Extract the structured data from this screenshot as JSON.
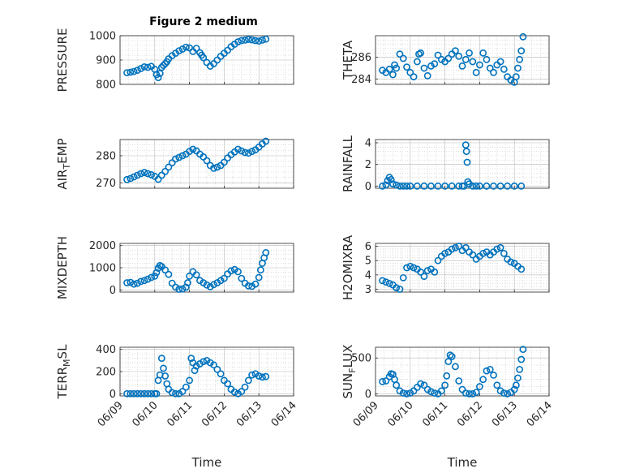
{
  "figure": {
    "title": "Figure 2 medium",
    "marker_color": "#0072bd"
  },
  "chart_data": [
    {
      "type": "scatter",
      "ylabel": "PRESSURE",
      "xlabel": "",
      "xlim": [
        "06/09",
        "06/14"
      ],
      "ylim": [
        800,
        1000
      ],
      "yticks": [
        800,
        900,
        1000
      ],
      "grid": true,
      "x": [
        0.2,
        0.3,
        0.4,
        0.5,
        0.6,
        0.7,
        0.8,
        0.9,
        1.0,
        1.05,
        1.1,
        1.15,
        1.2,
        1.25,
        1.3,
        1.35,
        1.4,
        1.5,
        1.6,
        1.7,
        1.8,
        1.9,
        2.0,
        2.1,
        2.2,
        2.3,
        2.35,
        2.4,
        2.5,
        2.6,
        2.7,
        2.8,
        2.9,
        3.0,
        3.1,
        3.2,
        3.3,
        3.4,
        3.5,
        3.6,
        3.7,
        3.8,
        3.9,
        4.0,
        4.1,
        4.2
      ],
      "y": [
        848,
        850,
        853,
        858,
        865,
        872,
        870,
        874,
        862,
        840,
        828,
        845,
        870,
        878,
        885,
        893,
        905,
        918,
        928,
        938,
        945,
        953,
        950,
        935,
        948,
        930,
        920,
        910,
        890,
        875,
        885,
        900,
        915,
        928,
        940,
        955,
        965,
        975,
        980,
        982,
        985,
        983,
        980,
        978,
        982,
        986
      ]
    },
    {
      "type": "scatter",
      "ylabel": "THETA",
      "xlabel": "",
      "xlim": [
        "06/09",
        "06/14"
      ],
      "ylim": [
        283.5,
        288
      ],
      "yticks": [
        284,
        286
      ],
      "grid": true,
      "x": [
        0.2,
        0.3,
        0.4,
        0.5,
        0.55,
        0.6,
        0.7,
        0.8,
        0.9,
        1.0,
        1.1,
        1.2,
        1.25,
        1.3,
        1.4,
        1.5,
        1.6,
        1.7,
        1.8,
        1.9,
        2.0,
        2.1,
        2.2,
        2.3,
        2.4,
        2.5,
        2.6,
        2.7,
        2.8,
        2.9,
        3.0,
        3.1,
        3.2,
        3.3,
        3.4,
        3.5,
        3.6,
        3.7,
        3.8,
        3.9,
        4.0,
        4.05,
        4.1,
        4.15,
        4.2,
        4.25
      ],
      "y": [
        284.8,
        284.6,
        284.9,
        284.4,
        285.3,
        285.0,
        286.3,
        285.9,
        285.1,
        284.6,
        284.2,
        285.6,
        286.3,
        286.4,
        285.0,
        284.3,
        285.2,
        285.4,
        286.2,
        285.8,
        285.6,
        285.9,
        286.3,
        286.6,
        286.1,
        285.2,
        285.8,
        286.4,
        285.6,
        284.6,
        285.3,
        286.4,
        285.8,
        285.0,
        284.6,
        285.3,
        285.6,
        284.9,
        284.2,
        283.9,
        283.7,
        284.2,
        285.0,
        285.8,
        286.6,
        287.9
      ]
    },
    {
      "type": "scatter",
      "ylabel": "AIR_TEMP",
      "xlabel": "",
      "xlim": [
        "06/09",
        "06/14"
      ],
      "ylim": [
        268,
        286
      ],
      "yticks": [
        270,
        280
      ],
      "grid": true,
      "x": [
        0.2,
        0.3,
        0.4,
        0.5,
        0.6,
        0.7,
        0.8,
        0.9,
        1.0,
        1.1,
        1.2,
        1.3,
        1.4,
        1.5,
        1.6,
        1.7,
        1.8,
        1.9,
        2.0,
        2.1,
        2.2,
        2.3,
        2.4,
        2.5,
        2.6,
        2.7,
        2.8,
        2.9,
        3.0,
        3.1,
        3.2,
        3.3,
        3.4,
        3.5,
        3.6,
        3.7,
        3.8,
        3.9,
        4.0,
        4.1,
        4.2
      ],
      "y": [
        271.2,
        271.6,
        272.2,
        272.8,
        273.4,
        273.8,
        273.4,
        273.0,
        272.4,
        271.3,
        272.8,
        274.2,
        275.8,
        277.4,
        278.8,
        279.4,
        280.0,
        280.6,
        281.6,
        282.4,
        281.8,
        280.6,
        279.6,
        278.2,
        276.4,
        275.4,
        275.8,
        276.4,
        277.6,
        279.2,
        280.4,
        281.4,
        282.4,
        281.8,
        281.2,
        281.0,
        281.6,
        282.2,
        283.2,
        284.4,
        285.4
      ]
    },
    {
      "type": "scatter",
      "ylabel": "RAINFALL",
      "xlabel": "",
      "xlim": [
        "06/09",
        "06/14"
      ],
      "ylim": [
        -0.2,
        4.3
      ],
      "yticks": [
        0,
        2,
        4
      ],
      "grid": true,
      "x": [
        0.2,
        0.3,
        0.35,
        0.4,
        0.45,
        0.5,
        0.6,
        0.7,
        0.8,
        0.9,
        1.0,
        1.2,
        1.4,
        1.6,
        1.8,
        2.0,
        2.2,
        2.4,
        2.5,
        2.55,
        2.6,
        2.62,
        2.64,
        2.66,
        2.7,
        2.8,
        2.9,
        3.0,
        3.2,
        3.4,
        3.6,
        3.8,
        4.0,
        4.2
      ],
      "y": [
        0,
        0.1,
        0.5,
        0.8,
        0.6,
        0.2,
        0.1,
        0,
        0,
        0,
        0,
        0,
        0,
        0,
        0,
        0,
        0,
        0,
        0,
        0,
        3.8,
        3.2,
        2.2,
        0.4,
        0.2,
        0,
        0,
        0,
        0,
        0,
        0,
        0,
        0,
        0
      ]
    },
    {
      "type": "scatter",
      "ylabel": "MIXDEPTH",
      "xlabel": "",
      "xlim": [
        "06/09",
        "06/14"
      ],
      "ylim": [
        -100,
        2100
      ],
      "yticks": [
        0,
        1000,
        2000
      ],
      "grid": true,
      "x": [
        0.2,
        0.3,
        0.4,
        0.5,
        0.6,
        0.7,
        0.8,
        0.9,
        1.0,
        1.05,
        1.1,
        1.15,
        1.2,
        1.3,
        1.4,
        1.5,
        1.6,
        1.7,
        1.8,
        1.9,
        1.95,
        2.0,
        2.1,
        2.2,
        2.3,
        2.4,
        2.5,
        2.6,
        2.7,
        2.8,
        2.9,
        3.0,
        3.1,
        3.2,
        3.3,
        3.4,
        3.5,
        3.6,
        3.7,
        3.8,
        3.9,
        4.0,
        4.05,
        4.1,
        4.15,
        4.2
      ],
      "y": [
        320,
        340,
        260,
        300,
        380,
        420,
        480,
        560,
        620,
        780,
        980,
        1100,
        1050,
        900,
        700,
        300,
        120,
        30,
        40,
        120,
        320,
        620,
        820,
        680,
        420,
        320,
        220,
        140,
        240,
        320,
        420,
        520,
        720,
        860,
        920,
        820,
        520,
        300,
        180,
        160,
        260,
        560,
        900,
        1200,
        1450,
        1680
      ]
    },
    {
      "type": "scatter",
      "ylabel": "H2OMIXRA",
      "xlabel": "",
      "xlim": [
        "06/09",
        "06/14"
      ],
      "ylim": [
        2.8,
        6.2
      ],
      "yticks": [
        3,
        4,
        5,
        6
      ],
      "grid": true,
      "x": [
        0.2,
        0.3,
        0.4,
        0.5,
        0.6,
        0.7,
        0.8,
        0.9,
        1.0,
        1.1,
        1.2,
        1.3,
        1.4,
        1.5,
        1.6,
        1.7,
        1.8,
        1.9,
        2.0,
        2.1,
        2.2,
        2.3,
        2.4,
        2.5,
        2.6,
        2.7,
        2.8,
        2.9,
        3.0,
        3.1,
        3.2,
        3.3,
        3.4,
        3.5,
        3.6,
        3.7,
        3.8,
        3.9,
        4.0,
        4.1,
        4.2
      ],
      "y": [
        3.6,
        3.5,
        3.4,
        3.3,
        3.1,
        3.0,
        3.8,
        4.5,
        4.6,
        4.5,
        4.4,
        4.2,
        3.9,
        4.3,
        4.4,
        4.2,
        5.0,
        5.3,
        5.5,
        5.6,
        5.8,
        5.9,
        6.0,
        5.7,
        5.9,
        5.6,
        5.4,
        5.1,
        5.3,
        5.5,
        5.6,
        5.4,
        5.6,
        5.8,
        5.9,
        5.5,
        5.1,
        4.9,
        4.8,
        4.6,
        4.4
      ]
    },
    {
      "type": "scatter",
      "ylabel": "TERR_MSL",
      "xlabel": "Time",
      "xlim": [
        "06/09",
        "06/14"
      ],
      "ylim": [
        -20,
        420
      ],
      "yticks": [
        0,
        200,
        400
      ],
      "grid": true,
      "xticks": [
        "06/09",
        "06/10",
        "06/11",
        "06/12",
        "06/13",
        "06/14"
      ],
      "x": [
        0.2,
        0.3,
        0.4,
        0.5,
        0.6,
        0.7,
        0.8,
        0.9,
        1.0,
        1.05,
        1.1,
        1.15,
        1.2,
        1.25,
        1.3,
        1.35,
        1.4,
        1.5,
        1.6,
        1.7,
        1.8,
        1.9,
        2.0,
        2.05,
        2.1,
        2.15,
        2.2,
        2.3,
        2.4,
        2.5,
        2.6,
        2.7,
        2.8,
        2.9,
        3.0,
        3.1,
        3.2,
        3.3,
        3.4,
        3.5,
        3.6,
        3.7,
        3.8,
        3.9,
        4.0,
        4.1,
        4.2
      ],
      "y": [
        0,
        0,
        0,
        0,
        0,
        0,
        0,
        0,
        0,
        0,
        120,
        170,
        320,
        230,
        160,
        90,
        40,
        10,
        0,
        0,
        20,
        60,
        120,
        320,
        280,
        210,
        250,
        270,
        290,
        300,
        280,
        260,
        220,
        180,
        120,
        90,
        40,
        15,
        0,
        20,
        60,
        120,
        170,
        180,
        160,
        150,
        155
      ]
    },
    {
      "type": "scatter",
      "ylabel": "SUN_FLUX",
      "xlabel": "Time",
      "xlim": [
        "06/09",
        "06/14"
      ],
      "ylim": [
        -30,
        650
      ],
      "yticks": [
        0,
        500
      ],
      "grid": true,
      "xticks": [
        "06/09",
        "06/10",
        "06/11",
        "06/12",
        "06/13",
        "06/14"
      ],
      "x": [
        0.2,
        0.3,
        0.4,
        0.45,
        0.5,
        0.55,
        0.6,
        0.7,
        0.8,
        0.9,
        1.0,
        1.1,
        1.2,
        1.3,
        1.4,
        1.5,
        1.6,
        1.7,
        1.8,
        1.9,
        2.0,
        2.05,
        2.1,
        2.15,
        2.2,
        2.3,
        2.4,
        2.5,
        2.6,
        2.7,
        2.8,
        2.9,
        3.0,
        3.1,
        3.2,
        3.3,
        3.4,
        3.5,
        3.6,
        3.7,
        3.8,
        3.9,
        4.0,
        4.05,
        4.1,
        4.15,
        4.2,
        4.25
      ],
      "y": [
        170,
        180,
        240,
        280,
        270,
        200,
        120,
        40,
        10,
        0,
        10,
        40,
        90,
        140,
        120,
        60,
        30,
        10,
        0,
        40,
        120,
        250,
        450,
        540,
        520,
        380,
        180,
        60,
        10,
        0,
        0,
        20,
        100,
        200,
        320,
        340,
        260,
        120,
        40,
        10,
        0,
        20,
        60,
        120,
        220,
        340,
        480,
        620
      ]
    }
  ]
}
